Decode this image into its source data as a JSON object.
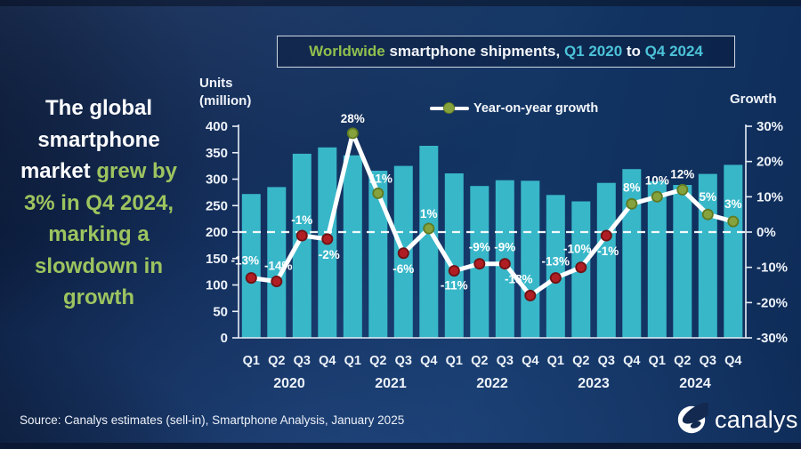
{
  "title_bar": {
    "part_worldwide": "Worldwide",
    "part_mid": " smartphone shipments, ",
    "part_start": "Q1 2020",
    "part_to": " to ",
    "part_end": "Q4 2024"
  },
  "headline": {
    "lines": [
      [
        {
          "t": "The global",
          "c": "w"
        }
      ],
      [
        {
          "t": "smartphone",
          "c": "w"
        }
      ],
      [
        {
          "t": "market",
          "c": "w"
        },
        {
          "t": " grew by",
          "c": "g"
        }
      ],
      [
        {
          "t": "3% in Q4 2024,",
          "c": "g"
        }
      ],
      [
        {
          "t": "marking a",
          "c": "g"
        }
      ],
      [
        {
          "t": "slowdown in",
          "c": "g"
        }
      ],
      [
        {
          "t": "growth",
          "c": "g"
        }
      ]
    ]
  },
  "axes": {
    "left_title_line1": "Units",
    "left_title_line2": "(million)",
    "right_title": "Growth"
  },
  "legend": {
    "label": "Year-on-year growth"
  },
  "source": {
    "text": "Source: Canalys estimates (sell-in), Smartphone Analysis, January 2025"
  },
  "logo": {
    "text": "canalys"
  },
  "chart_data": {
    "type": "bar+line",
    "title": "Worldwide smartphone shipments, Q1 2020 to Q4 2024",
    "quarters": [
      "Q1",
      "Q2",
      "Q3",
      "Q4",
      "Q1",
      "Q2",
      "Q3",
      "Q4",
      "Q1",
      "Q2",
      "Q3",
      "Q4",
      "Q1",
      "Q2",
      "Q3",
      "Q4",
      "Q1",
      "Q2",
      "Q3",
      "Q4"
    ],
    "years": [
      "2020",
      "2021",
      "2022",
      "2023",
      "2024"
    ],
    "series": [
      {
        "name": "Shipments (million units)",
        "type": "bar",
        "values": [
          272,
          285,
          348,
          360,
          345,
          316,
          325,
          363,
          311,
          287,
          298,
          297,
          270,
          258,
          293,
          319,
          296,
          289,
          310,
          327
        ]
      },
      {
        "name": "Year-on-year growth",
        "type": "line",
        "values_pct": [
          -13,
          -14,
          -1,
          -2,
          28,
          11,
          -6,
          1,
          -11,
          -9,
          -9,
          -18,
          -13,
          -10,
          -1,
          8,
          10,
          12,
          5,
          3
        ]
      }
    ],
    "left_axis": {
      "label": "Units (million)",
      "min": 0,
      "max": 400,
      "step": 50
    },
    "right_axis": {
      "label": "Growth",
      "min": -30,
      "max": 30,
      "step": 10,
      "unit": "%"
    },
    "zero_growth_dashed_line": true,
    "legend_position": "top-center",
    "colors": {
      "bar": "#38b7c9",
      "line": "#ffffff",
      "marker_positive": "#86a23d",
      "marker_positive_edge": "#5f7a22",
      "marker_negative": "#b01e23",
      "marker_negative_edge": "#701114",
      "title_green": "#8fc04d",
      "title_teal": "#4cc3d8",
      "headline_green": "#9dc45f"
    }
  }
}
